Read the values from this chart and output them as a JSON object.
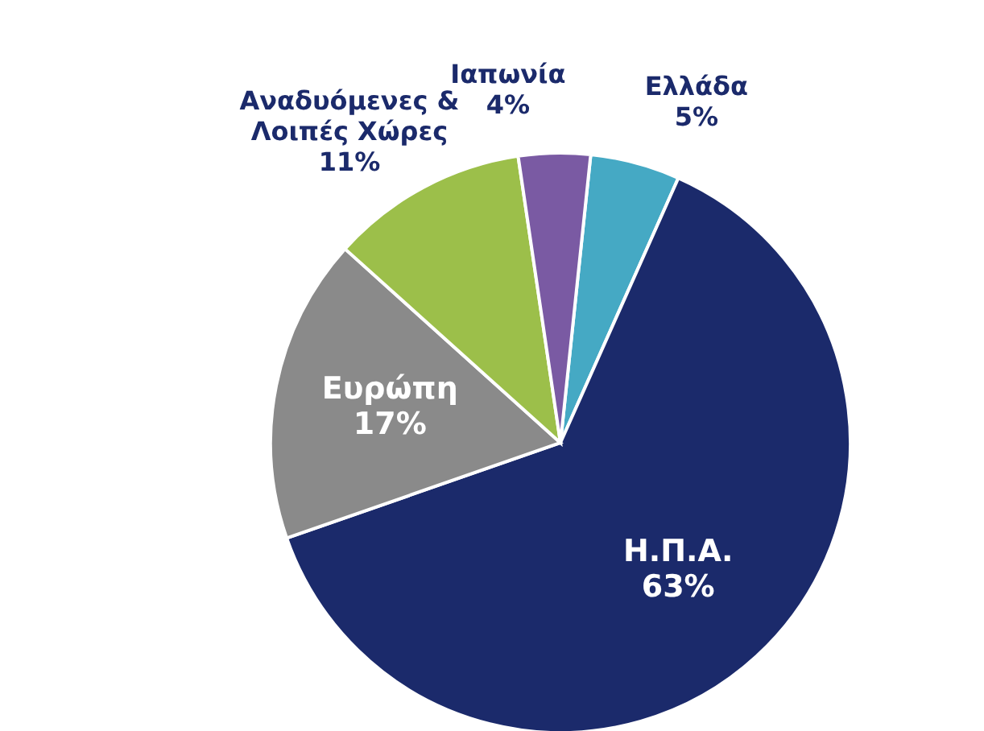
{
  "chart_data": {
    "type": "pie",
    "categories": [
      "Ελλάδα",
      "Η.Π.Α.",
      "Ευρώπη",
      "Αναδυόμενες & Λοιπές Χώρες",
      "Ιαπωνία"
    ],
    "values": [
      5,
      63,
      17,
      11,
      4
    ],
    "value_labels": [
      "5%",
      "63%",
      "17%",
      "11%",
      "4%"
    ],
    "colors": [
      "#45a9c4",
      "#1b2a6b",
      "#8a8a8a",
      "#9cbf4a",
      "#7a5aa3"
    ],
    "legend": false
  }
}
